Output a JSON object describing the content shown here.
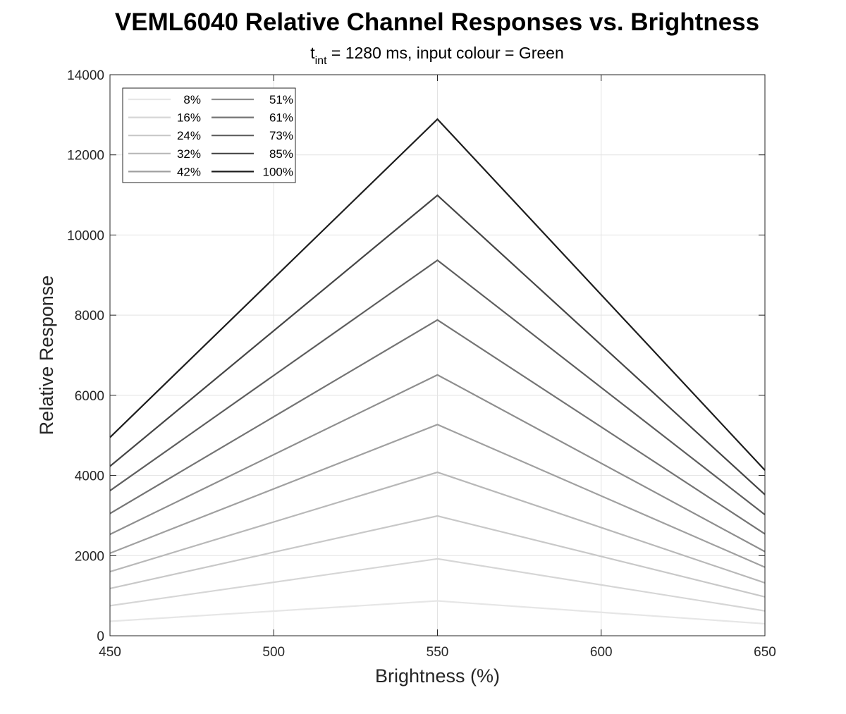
{
  "chart_data": {
    "type": "line",
    "title": "VEML6040 Relative Channel Responses vs. Brightness",
    "subtitle": {
      "prefix": "t",
      "subscript": "int",
      "suffix": " = 1280 ms, input colour = Green"
    },
    "xlabel": "Brightness (%)",
    "ylabel": "Relative Response",
    "xlim": [
      450,
      650
    ],
    "ylim": [
      0,
      14000
    ],
    "xticks": [
      450,
      500,
      550,
      600,
      650
    ],
    "yticks": [
      0,
      2000,
      4000,
      6000,
      8000,
      10000,
      12000,
      14000
    ],
    "grid": true,
    "legend_position": "top-left",
    "legend_columns": 2,
    "x": [
      450,
      550,
      650
    ],
    "series": [
      {
        "name": "8%",
        "color": "#e6e6e6",
        "values": [
          360,
          870,
          300
        ]
      },
      {
        "name": "16%",
        "color": "#d6d6d6",
        "values": [
          750,
          1920,
          620
        ]
      },
      {
        "name": "24%",
        "color": "#c8c8c8",
        "values": [
          1180,
          2990,
          970
        ]
      },
      {
        "name": "32%",
        "color": "#b8b8b8",
        "values": [
          1600,
          4080,
          1320
        ]
      },
      {
        "name": "42%",
        "color": "#a0a0a0",
        "values": [
          2060,
          5270,
          1710
        ]
      },
      {
        "name": "51%",
        "color": "#8e8e8e",
        "values": [
          2530,
          6510,
          2100
        ]
      },
      {
        "name": "61%",
        "color": "#747474",
        "values": [
          3050,
          7880,
          2540
        ]
      },
      {
        "name": "73%",
        "color": "#5e5e5e",
        "values": [
          3620,
          9370,
          3020
        ]
      },
      {
        "name": "85%",
        "color": "#454545",
        "values": [
          4230,
          10990,
          3520
        ]
      },
      {
        "name": "100%",
        "color": "#1e1e1e",
        "values": [
          4950,
          12890,
          4130
        ]
      }
    ]
  }
}
